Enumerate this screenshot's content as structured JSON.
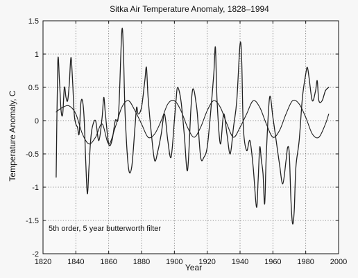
{
  "chart_data": {
    "type": "line",
    "title": "Sitka Air Temperature Anomaly, 1828–1994",
    "xlabel": "Year",
    "ylabel": "Temperature Anomaly, C",
    "annotation": "5th order, 5 year butterworth filter",
    "xlim": [
      1820,
      2000
    ],
    "ylim": [
      -2,
      1.5
    ],
    "xticks": [
      1820,
      1840,
      1860,
      1880,
      1900,
      1920,
      1940,
      1960,
      1980,
      2000
    ],
    "yticks": [
      -2,
      -1.5,
      -1,
      -0.5,
      0,
      0.5,
      1,
      1.5
    ],
    "grid": true,
    "colors": {
      "line": "#222222",
      "grid": "#666666"
    },
    "series": [
      {
        "x": [
          1828,
          1829,
          1830,
          1831,
          1832,
          1833,
          1834,
          1835,
          1836,
          1837,
          1838,
          1839,
          1840,
          1841,
          1842,
          1843,
          1844,
          1845,
          1846,
          1847,
          1848,
          1849,
          1850,
          1852,
          1854,
          1856,
          1857,
          1858,
          1860,
          1862,
          1864,
          1866,
          1868,
          1869,
          1870,
          1872,
          1874,
          1876,
          1877,
          1878,
          1880,
          1882,
          1883,
          1884,
          1886,
          1888,
          1890,
          1892,
          1894,
          1896,
          1898,
          1900,
          1901,
          1902,
          1904,
          1906,
          1908,
          1910,
          1911,
          1912,
          1913,
          1914,
          1916,
          1918,
          1920,
          1922,
          1924,
          1925,
          1926,
          1928,
          1930,
          1932,
          1934,
          1936,
          1938,
          1940,
          1941,
          1942,
          1944,
          1946,
          1948,
          1950,
          1951,
          1952,
          1953,
          1954,
          1955,
          1956,
          1958,
          1960,
          1962,
          1964,
          1966,
          1968,
          1969,
          1970,
          1971,
          1972,
          1973,
          1974,
          1976,
          1978,
          1980,
          1981,
          1982,
          1984,
          1986,
          1987,
          1988,
          1990,
          1992,
          1994
        ],
        "y": [
          -0.85,
          0.88,
          0.6,
          0.15,
          0.1,
          0.5,
          0.35,
          0.3,
          0.55,
          0.95,
          0.6,
          0.1,
          -0.05,
          -0.1,
          -0.2,
          0.25,
          0.3,
          0.05,
          -0.6,
          -1.1,
          -0.7,
          -0.3,
          -0.1,
          0.0,
          -0.3,
          0.05,
          0.35,
          0.1,
          -0.35,
          -0.3,
          0.0,
          0.1,
          1.35,
          1.0,
          0.1,
          -0.7,
          -0.7,
          -0.1,
          0.2,
          0.1,
          0.2,
          0.6,
          0.8,
          0.35,
          -0.2,
          -0.6,
          -0.45,
          -0.2,
          0.1,
          -0.3,
          -0.55,
          0.0,
          0.3,
          0.5,
          0.3,
          -0.2,
          -0.75,
          0.15,
          0.45,
          0.45,
          0.3,
          0.1,
          -0.55,
          -0.55,
          -0.4,
          0.1,
          0.7,
          1.1,
          0.3,
          -0.35,
          0.1,
          -0.2,
          -0.5,
          -0.1,
          0.3,
          1.15,
          0.9,
          -0.1,
          -0.45,
          -0.3,
          -0.7,
          -1.3,
          -0.9,
          -0.4,
          -0.6,
          -0.8,
          -1.25,
          -0.5,
          0.35,
          0.05,
          -0.3,
          -0.65,
          -0.95,
          -0.6,
          -0.4,
          -0.5,
          -1.2,
          -1.55,
          -1.35,
          -0.7,
          -0.3,
          0.35,
          0.7,
          0.8,
          0.65,
          0.3,
          0.45,
          0.6,
          0.3,
          0.3,
          0.45,
          0.5
        ]
      },
      {
        "x": [
          1828,
          1832,
          1836,
          1840,
          1844,
          1848,
          1852,
          1856,
          1860,
          1864,
          1868,
          1872,
          1876,
          1880,
          1884,
          1888,
          1892,
          1896,
          1900,
          1904,
          1908,
          1912,
          1916,
          1920,
          1924,
          1928,
          1932,
          1936,
          1940,
          1944,
          1948,
          1952,
          1956,
          1960,
          1964,
          1968,
          1972,
          1976,
          1980,
          1984,
          1988,
          1992,
          1994
        ],
        "y": [
          0.13,
          0.2,
          0.22,
          0.1,
          -0.2,
          -0.35,
          -0.25,
          -0.05,
          -0.35,
          -0.1,
          0.2,
          0.3,
          0.15,
          -0.05,
          -0.25,
          -0.2,
          0.0,
          0.25,
          0.3,
          0.15,
          -0.1,
          -0.25,
          -0.1,
          0.15,
          0.3,
          0.2,
          -0.05,
          -0.25,
          -0.1,
          0.1,
          0.3,
          0.2,
          -0.05,
          -0.25,
          -0.15,
          0.1,
          0.3,
          0.25,
          0.05,
          -0.2,
          -0.25,
          -0.05,
          0.1
        ]
      }
    ]
  }
}
